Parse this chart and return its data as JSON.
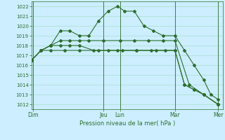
{
  "background_color": "#cceeff",
  "grid_color": "#aaddcc",
  "line_color": "#2d6e2d",
  "xlabel": "Pression niveau de la mer( hPa )",
  "ylim": [
    1011.5,
    1022.5
  ],
  "yticks": [
    1012,
    1013,
    1014,
    1015,
    1016,
    1017,
    1018,
    1019,
    1020,
    1021,
    1022
  ],
  "xlim": [
    0,
    8.0
  ],
  "xtick_labels": [
    "Dim",
    "Jeu",
    "Lun",
    "Mar",
    "Mer"
  ],
  "xtick_positions": [
    0.05,
    3.0,
    3.7,
    6.0,
    7.8
  ],
  "vlines": [
    0.05,
    3.0,
    3.7,
    6.0,
    7.8
  ],
  "series": [
    {
      "x": [
        0.0,
        0.4,
        0.8,
        1.2,
        1.6,
        2.0,
        2.4,
        2.8,
        3.2,
        3.6,
        3.9,
        4.3,
        4.7,
        5.1,
        5.5,
        6.0,
        6.4,
        6.8,
        7.2,
        7.5,
        7.8
      ],
      "y": [
        1016.5,
        1017.5,
        1018.0,
        1019.5,
        1019.5,
        1019.0,
        1019.0,
        1020.5,
        1021.5,
        1022.0,
        1021.5,
        1021.5,
        1020.0,
        1019.5,
        1019.0,
        1019.0,
        1017.5,
        1016.0,
        1014.5,
        1013.0,
        1012.5
      ]
    },
    {
      "x": [
        0.0,
        0.4,
        0.8,
        1.2,
        1.6,
        2.0,
        2.4,
        3.0,
        3.7,
        4.3,
        4.9,
        5.5,
        6.0,
        6.6,
        7.2,
        7.8
      ],
      "y": [
        1016.5,
        1017.5,
        1018.0,
        1018.5,
        1018.5,
        1018.5,
        1018.5,
        1018.5,
        1018.5,
        1018.5,
        1018.5,
        1018.5,
        1018.5,
        1014.0,
        1013.0,
        1012.0
      ]
    },
    {
      "x": [
        0.0,
        0.4,
        0.8,
        1.2,
        1.6,
        2.0,
        2.6,
        3.2,
        3.8,
        4.4,
        5.0,
        5.6,
        6.0,
        6.4,
        6.8,
        7.2,
        7.8
      ],
      "y": [
        1016.5,
        1017.5,
        1018.0,
        1018.0,
        1018.0,
        1018.0,
        1017.5,
        1017.5,
        1017.5,
        1017.5,
        1017.5,
        1017.5,
        1017.5,
        1014.0,
        1013.5,
        1013.0,
        1012.0
      ]
    },
    {
      "x": [
        0.0,
        0.4,
        0.8,
        1.4,
        2.0,
        2.8,
        3.6,
        4.4,
        5.2,
        6.0,
        6.4,
        6.8,
        7.2,
        7.8
      ],
      "y": [
        1016.5,
        1017.5,
        1017.5,
        1017.5,
        1017.5,
        1017.5,
        1017.5,
        1017.5,
        1017.5,
        1017.5,
        1014.0,
        1013.5,
        1013.0,
        1012.0
      ]
    }
  ]
}
